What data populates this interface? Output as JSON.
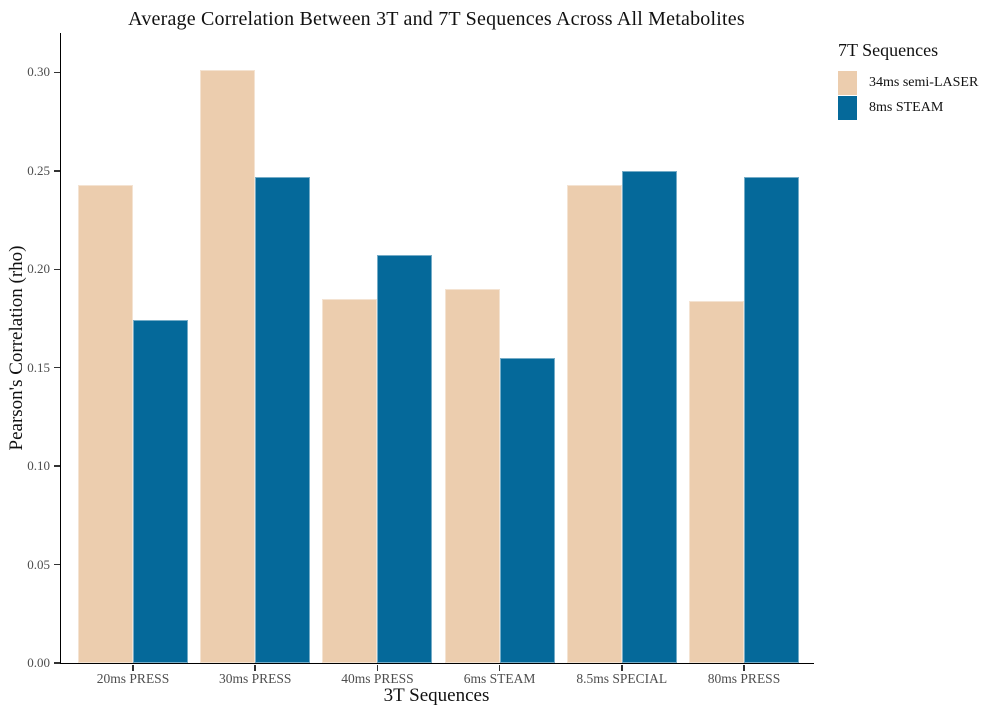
{
  "chart_data": {
    "type": "bar",
    "title": "Average Correlation Between 3T and 7T Sequences Across All Metabolites",
    "xlabel": "3T Sequences",
    "ylabel": "Pearson's Correlation (rho)",
    "legend_title": "7T Sequences",
    "legend_position": "right",
    "grid": false,
    "categories": [
      "20ms PRESS",
      "30ms PRESS",
      "40ms PRESS",
      "6ms STEAM",
      "8.5ms SPECIAL",
      "80ms PRESS"
    ],
    "series": [
      {
        "name": "34ms semi-LASER",
        "color": "#ECCDAE",
        "values": [
          0.243,
          0.301,
          0.185,
          0.19,
          0.243,
          0.184
        ]
      },
      {
        "name": "8ms STEAM",
        "color": "#05699A",
        "values": [
          0.174,
          0.247,
          0.207,
          0.155,
          0.25,
          0.247
        ]
      }
    ],
    "ylim": [
      0,
      0.32
    ],
    "yticks": [
      "0.00",
      "0.05",
      "0.10",
      "0.15",
      "0.20",
      "0.25",
      "0.30"
    ],
    "axis_color": "#000000",
    "tick_label_color": "#4d4d4d"
  }
}
